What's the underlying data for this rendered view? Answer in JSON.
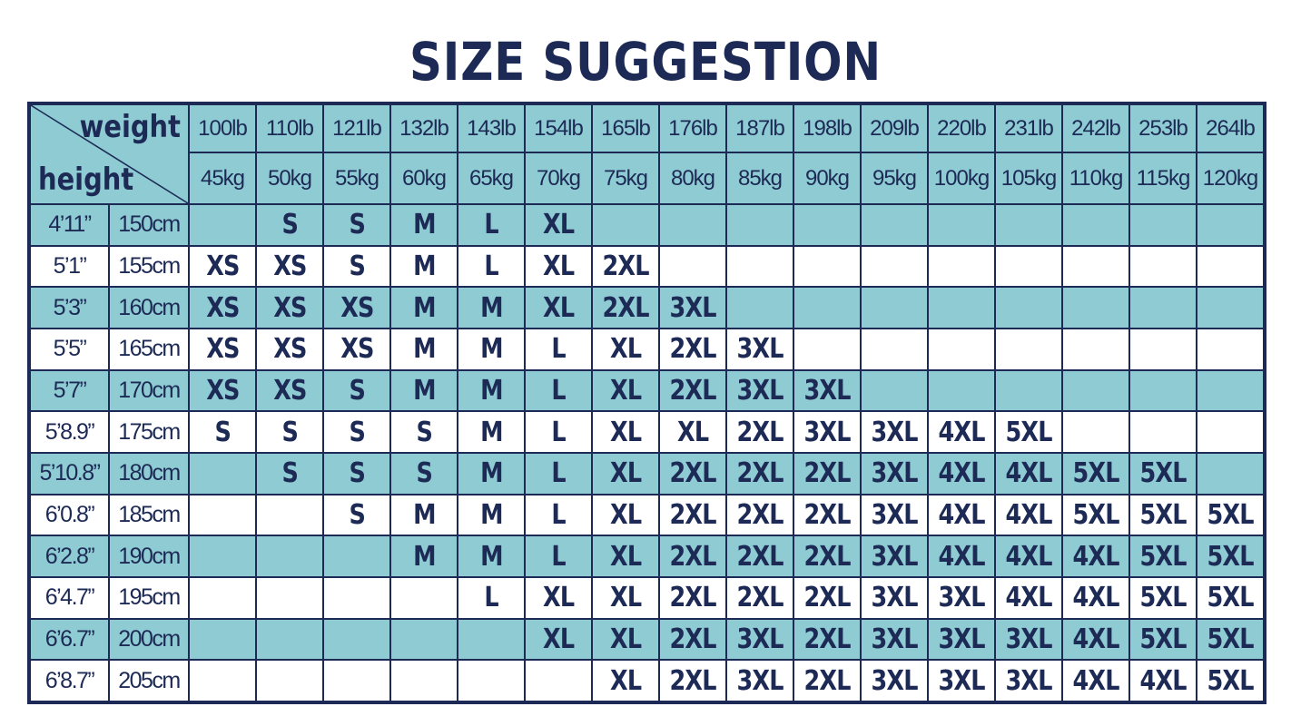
{
  "title": "SIZE SUGGESTION",
  "colors": {
    "navy": "#1c2a55",
    "teal": "#8ecbd3",
    "white": "#ffffff"
  },
  "corner": {
    "weight_label": "weight",
    "height_label": "height"
  },
  "weights_lb": [
    "100lb",
    "110lb",
    "121lb",
    "132lb",
    "143lb",
    "154lb",
    "165lb",
    "176lb",
    "187lb",
    "198lb",
    "209lb",
    "220lb",
    "231lb",
    "242lb",
    "253lb",
    "264lb"
  ],
  "weights_kg": [
    "45kg",
    "50kg",
    "55kg",
    "60kg",
    "65kg",
    "70kg",
    "75kg",
    "80kg",
    "85kg",
    "90kg",
    "95kg",
    "100kg",
    "105kg",
    "110kg",
    "115kg",
    "120kg"
  ],
  "rows": [
    {
      "ft": "4’11”",
      "cm": "150cm",
      "sizes": [
        "",
        "S",
        "S",
        "M",
        "L",
        "XL",
        "",
        "",
        "",
        "",
        "",
        "",
        "",
        "",
        "",
        ""
      ]
    },
    {
      "ft": "5’1”",
      "cm": "155cm",
      "sizes": [
        "XS",
        "XS",
        "S",
        "M",
        "L",
        "XL",
        "2XL",
        "",
        "",
        "",
        "",
        "",
        "",
        "",
        "",
        ""
      ]
    },
    {
      "ft": "5’3”",
      "cm": "160cm",
      "sizes": [
        "XS",
        "XS",
        "XS",
        "M",
        "M",
        "XL",
        "2XL",
        "3XL",
        "",
        "",
        "",
        "",
        "",
        "",
        "",
        ""
      ]
    },
    {
      "ft": "5’5”",
      "cm": "165cm",
      "sizes": [
        "XS",
        "XS",
        "XS",
        "M",
        "M",
        "L",
        "XL",
        "2XL",
        "3XL",
        "",
        "",
        "",
        "",
        "",
        "",
        ""
      ]
    },
    {
      "ft": "5’7”",
      "cm": "170cm",
      "sizes": [
        "XS",
        "XS",
        "S",
        "M",
        "M",
        "L",
        "XL",
        "2XL",
        "3XL",
        "3XL",
        "",
        "",
        "",
        "",
        "",
        ""
      ]
    },
    {
      "ft": "5’8.9”",
      "cm": "175cm",
      "sizes": [
        "S",
        "S",
        "S",
        "S",
        "M",
        "L",
        "XL",
        "XL",
        "2XL",
        "3XL",
        "3XL",
        "4XL",
        "5XL",
        "",
        "",
        ""
      ]
    },
    {
      "ft": "5’10.8”",
      "cm": "180cm",
      "sizes": [
        "",
        "S",
        "S",
        "S",
        "M",
        "L",
        "XL",
        "2XL",
        "2XL",
        "2XL",
        "3XL",
        "4XL",
        "4XL",
        "5XL",
        "5XL",
        ""
      ]
    },
    {
      "ft": "6’0.8”",
      "cm": "185cm",
      "sizes": [
        "",
        "",
        "S",
        "M",
        "M",
        "L",
        "XL",
        "2XL",
        "2XL",
        "2XL",
        "3XL",
        "4XL",
        "4XL",
        "5XL",
        "5XL",
        "5XL"
      ]
    },
    {
      "ft": "6’2.8”",
      "cm": "190cm",
      "sizes": [
        "",
        "",
        "",
        "M",
        "M",
        "L",
        "XL",
        "2XL",
        "2XL",
        "2XL",
        "3XL",
        "4XL",
        "4XL",
        "4XL",
        "5XL",
        "5XL"
      ]
    },
    {
      "ft": "6’4.7”",
      "cm": "195cm",
      "sizes": [
        "",
        "",
        "",
        "",
        "L",
        "XL",
        "XL",
        "2XL",
        "2XL",
        "2XL",
        "3XL",
        "3XL",
        "4XL",
        "4XL",
        "5XL",
        "5XL"
      ]
    },
    {
      "ft": "6’6.7”",
      "cm": "200cm",
      "sizes": [
        "",
        "",
        "",
        "",
        "",
        "XL",
        "XL",
        "2XL",
        "3XL",
        "2XL",
        "3XL",
        "3XL",
        "3XL",
        "4XL",
        "5XL",
        "5XL"
      ]
    },
    {
      "ft": "6’8.7”",
      "cm": "205cm",
      "sizes": [
        "",
        "",
        "",
        "",
        "",
        "",
        "XL",
        "2XL",
        "3XL",
        "2XL",
        "3XL",
        "3XL",
        "3XL",
        "4XL",
        "4XL",
        "5XL"
      ]
    }
  ]
}
